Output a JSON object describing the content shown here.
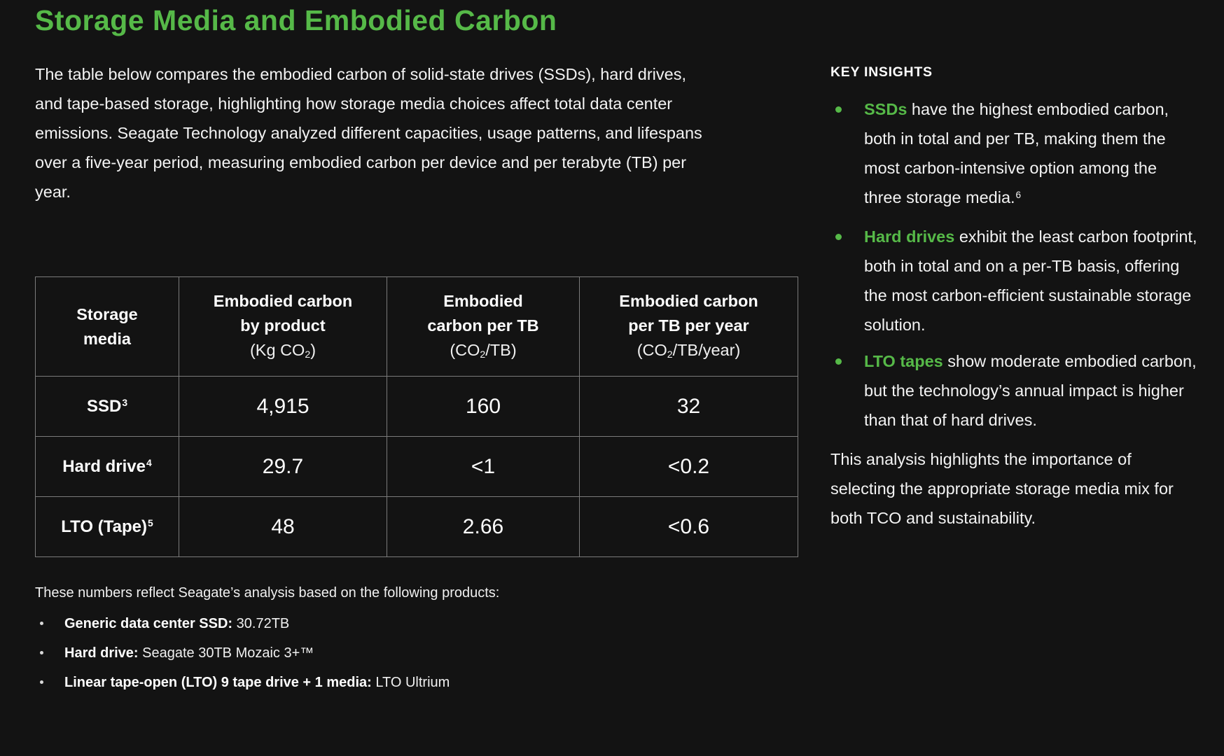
{
  "page": {
    "title": "Storage Media and Embodied Carbon",
    "intro": "The table below compares the embodied carbon of solid-state drives (SSDs), hard drives, and tape-based storage, highlighting how storage media choices affect total data center emissions. Seagate Technology analyzed different capacities, usage patterns, and lifespans over a five-year period, measuring embodied carbon per device and per terabyte (TB) per year."
  },
  "table": {
    "headers": [
      {
        "lines": [
          "Storage",
          "media"
        ]
      },
      {
        "lines": [
          "Embodied carbon",
          "by product"
        ],
        "unit_pre": "(Kg CO",
        "unit_sub": "2",
        "unit_post": ")"
      },
      {
        "lines": [
          "Embodied",
          "carbon per TB"
        ],
        "unit_pre": "(CO",
        "unit_sub": "2",
        "unit_post": "/TB)"
      },
      {
        "lines": [
          "Embodied carbon",
          "per TB per year"
        ],
        "unit_pre": "(CO",
        "unit_sub": "2",
        "unit_post": "/TB/year)"
      }
    ],
    "rows": [
      {
        "label": "SSD",
        "sup": "3",
        "values": [
          "4,915",
          "160",
          "32"
        ]
      },
      {
        "label": "Hard drive",
        "sup": "4",
        "values": [
          "29.7",
          "<1",
          "<0.2"
        ]
      },
      {
        "label": "LTO (Tape)",
        "sup": "5",
        "values": [
          "48",
          "2.66",
          "<0.6"
        ]
      }
    ]
  },
  "footnotes": {
    "intro": "These numbers reflect Seagate’s analysis based on the following products:",
    "items": [
      {
        "label": "Generic data center SSD:",
        "value": " 30.72TB"
      },
      {
        "label": "Hard drive:",
        "value": " Seagate 30TB Mozaic 3+™"
      },
      {
        "label": "Linear tape-open (LTO) 9 tape drive + 1 media:",
        "value": " LTO Ultrium"
      }
    ]
  },
  "insights": {
    "heading": "KEY INSIGHTS",
    "items": [
      {
        "lead": "SSDs",
        "text": " have the highest embodied carbon, both in total and per TB, making them the most carbon-intensive option among the three storage media.",
        "sup": "6"
      },
      {
        "lead": "Hard drives",
        "text": " exhibit the least carbon footprint, both in total and on a per-TB basis, offering the most carbon-efficient sustainable storage solution."
      },
      {
        "lead": "LTO tapes",
        "text": " show moderate embodied carbon, but the technology’s annual impact is higher than that of hard drives."
      }
    ],
    "closing": "This analysis highlights the importance of selecting the appropriate storage media mix for both TCO and sustainability."
  },
  "colors": {
    "background": "#131313",
    "accent_green": "#56b948",
    "table_border": "#7b7b7b",
    "text_primary": "#f3f3f3"
  }
}
